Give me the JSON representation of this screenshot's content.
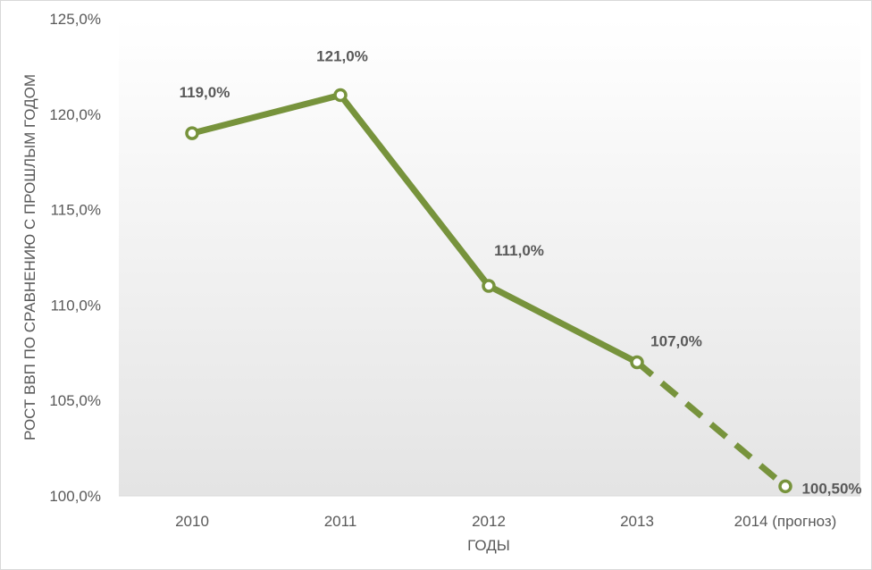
{
  "chart_data": {
    "type": "line",
    "title": "",
    "xlabel": "ГОДЫ",
    "ylabel": "РОСТ ВВП ПО СРАВНЕНИЮ С ПРОШЛЫМ ГОДОМ",
    "categories": [
      "2010",
      "2011",
      "2012",
      "2013",
      "2014 (прогноз)"
    ],
    "series": [
      {
        "values": [
          119.0,
          121.0,
          111.0,
          107.0,
          100.5
        ],
        "data_labels": [
          "119,0%",
          "121,0%",
          "111,0%",
          "107,0%",
          "100,50%"
        ],
        "forecast_from_index": 3,
        "color": "#77933c"
      }
    ],
    "ylim": [
      100,
      125
    ],
    "yticks": [
      100,
      105,
      110,
      115,
      120,
      125
    ],
    "ytick_labels": [
      "100,0%",
      "105,0%",
      "110,0%",
      "115,0%",
      "120,0%",
      "125,0%"
    ],
    "drop_lines": true,
    "drop_line_color": "#77933c",
    "grid": false,
    "legend": "none",
    "background_gradient": true
  }
}
